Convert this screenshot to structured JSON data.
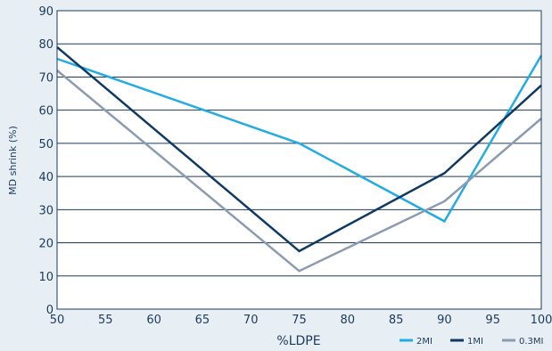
{
  "chart_data": {
    "type": "line",
    "title": "",
    "xlabel": "%LDPE",
    "ylabel": "MD shrink (%)",
    "xlim": [
      50,
      100
    ],
    "ylim": [
      0,
      90
    ],
    "x_ticks": [
      "50",
      "55",
      "60",
      "65",
      "70",
      "75",
      "80",
      "85",
      "90",
      "95",
      "100"
    ],
    "y_ticks": [
      "0",
      "10",
      "20",
      "30",
      "40",
      "50",
      "60",
      "70",
      "80",
      "90"
    ],
    "grid": "horizontal",
    "legend_position": "bottom-right",
    "series": [
      {
        "name": "2MI",
        "color": "#22ace3",
        "x": [
          50,
          75,
          90,
          100
        ],
        "y": [
          75.5,
          50,
          26.5,
          76.5
        ]
      },
      {
        "name": "1MI",
        "color": "#0f3a63",
        "x": [
          50,
          75,
          90,
          100
        ],
        "y": [
          79,
          17.5,
          41,
          67.5
        ]
      },
      {
        "name": "0.3MI",
        "color": "#8b9bb0",
        "x": [
          50,
          75,
          90,
          100
        ],
        "y": [
          72,
          11.5,
          32.5,
          57.5
        ]
      }
    ]
  }
}
